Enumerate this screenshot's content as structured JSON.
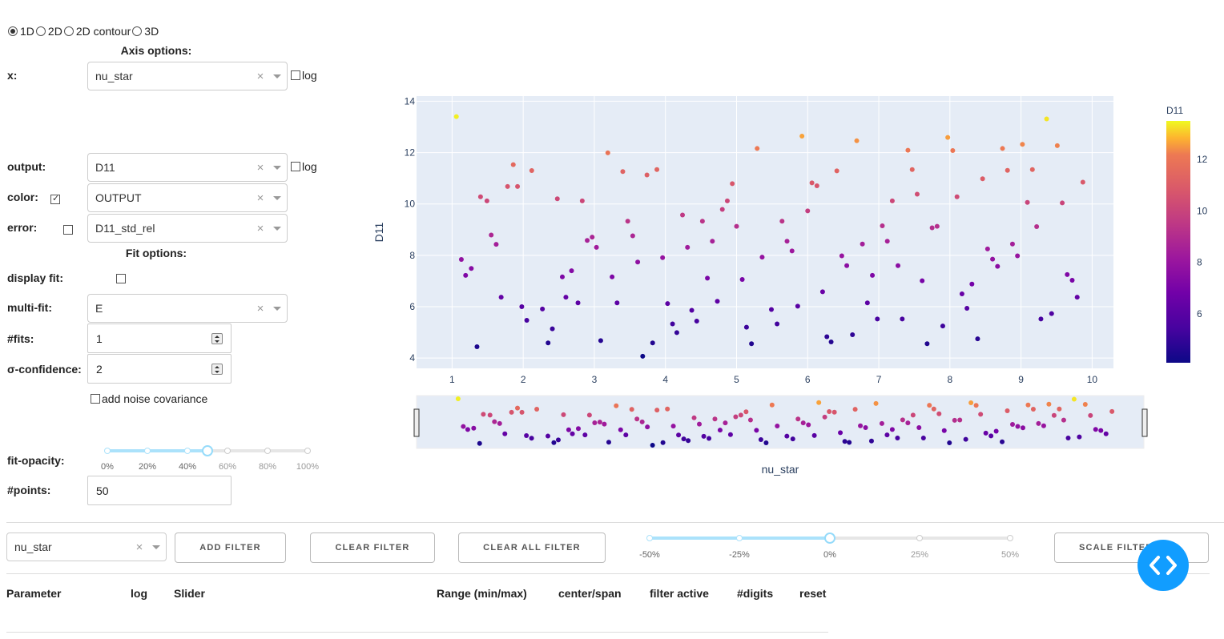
{
  "plot_mode": {
    "options": [
      "1D",
      "2D",
      "2D contour",
      "3D"
    ],
    "selected": "1D"
  },
  "axis_options": {
    "title": "Axis options:",
    "x": {
      "label": "x:",
      "value": "nu_star",
      "log_label": "log",
      "log_checked": false
    },
    "output": {
      "label": "output:",
      "value": "D11",
      "log_label": "log",
      "log_checked": false
    },
    "color": {
      "label": "color:",
      "checked": true,
      "value": "OUTPUT"
    },
    "error": {
      "label": "error:",
      "checked": false,
      "value": "D11_std_rel"
    }
  },
  "fit_options": {
    "title": "Fit options:",
    "display_fit": {
      "label": "display fit:",
      "checked": false
    },
    "multi_fit": {
      "label": "multi-fit:",
      "value": "E"
    },
    "n_fits": {
      "label": "#fits:",
      "value": "1"
    },
    "sigma_confidence": {
      "label": "σ-confidence:",
      "value": "2"
    },
    "noise_cov": {
      "label": "add noise covariance",
      "checked": false
    },
    "fit_opacity": {
      "label": "fit-opacity:",
      "value": 0.5,
      "marks": [
        "0%",
        "20%",
        "40%",
        "60%",
        "80%",
        "100%"
      ]
    },
    "n_points": {
      "label": "#points:",
      "value": "50"
    }
  },
  "filter_bar": {
    "parameter": "nu_star",
    "add_filter": "ADD FILTER",
    "clear_filter": "CLEAR FILTER",
    "clear_all_filter": "CLEAR ALL FILTER",
    "scale_filter": "SCALE FILTER",
    "scale_value": 0,
    "scale_marks": [
      "-50%",
      "-25%",
      "0%",
      "25%",
      "50%"
    ]
  },
  "filter_table": {
    "headers": [
      "Parameter",
      "log",
      "Slider",
      "Range (min/max)",
      "center/span",
      "filter active",
      "#digits",
      "reset"
    ]
  },
  "colors": {
    "plot_bg": "#e5ecf6",
    "accent": "#119dff",
    "slider_fill": "#abe2fb"
  },
  "chart_data": {
    "type": "scatter",
    "xlabel": "nu_star",
    "ylabel": "D11",
    "xlim": [
      0.5,
      10.3
    ],
    "ylim": [
      3.6,
      14.2
    ],
    "x_ticks": [
      "1",
      "2",
      "3",
      "4",
      "5",
      "6",
      "7",
      "8",
      "9",
      "10"
    ],
    "y_ticks": [
      "4",
      "6",
      "8",
      "10",
      "12",
      "14"
    ],
    "colorbar": {
      "title": "D11",
      "ticks": [
        "6",
        "8",
        "10",
        "12"
      ],
      "range": [
        4.1,
        13.5
      ],
      "colorscale": "plasma"
    },
    "grid": true,
    "range_slider": true,
    "points": [
      [
        1.06,
        13.4
      ],
      [
        1.13,
        7.84
      ],
      [
        1.19,
        7.22
      ],
      [
        1.27,
        7.49
      ],
      [
        1.35,
        4.44
      ],
      [
        1.4,
        10.28
      ],
      [
        1.49,
        10.12
      ],
      [
        1.55,
        8.79
      ],
      [
        1.62,
        8.43
      ],
      [
        1.69,
        6.37
      ],
      [
        1.78,
        10.68
      ],
      [
        1.86,
        11.53
      ],
      [
        1.92,
        10.68
      ],
      [
        1.98,
        6.0
      ],
      [
        2.05,
        5.47
      ],
      [
        2.12,
        11.3
      ],
      [
        2.27,
        5.91
      ],
      [
        2.35,
        4.59
      ],
      [
        2.41,
        5.14
      ],
      [
        2.48,
        10.2
      ],
      [
        2.55,
        7.16
      ],
      [
        2.6,
        6.37
      ],
      [
        2.68,
        7.4
      ],
      [
        2.77,
        6.15
      ],
      [
        2.83,
        10.12
      ],
      [
        2.9,
        8.58
      ],
      [
        2.97,
        8.71
      ],
      [
        3.03,
        8.31
      ],
      [
        3.09,
        4.68
      ],
      [
        3.19,
        11.99
      ],
      [
        3.25,
        7.16
      ],
      [
        3.32,
        6.15
      ],
      [
        3.4,
        11.26
      ],
      [
        3.47,
        9.33
      ],
      [
        3.54,
        8.76
      ],
      [
        3.61,
        7.74
      ],
      [
        3.68,
        4.07
      ],
      [
        3.74,
        11.13
      ],
      [
        3.82,
        4.59
      ],
      [
        3.88,
        11.34
      ],
      [
        3.96,
        7.91
      ],
      [
        4.03,
        6.12
      ],
      [
        4.1,
        5.33
      ],
      [
        4.16,
        4.99
      ],
      [
        4.24,
        9.57
      ],
      [
        4.31,
        8.31
      ],
      [
        4.37,
        5.86
      ],
      [
        4.44,
        5.44
      ],
      [
        4.52,
        9.33
      ],
      [
        4.59,
        7.11
      ],
      [
        4.66,
        8.55
      ],
      [
        4.73,
        6.21
      ],
      [
        4.8,
        9.79
      ],
      [
        4.87,
        10.12
      ],
      [
        4.94,
        10.79
      ],
      [
        5.0,
        9.13
      ],
      [
        5.08,
        7.06
      ],
      [
        5.14,
        5.2
      ],
      [
        5.21,
        4.56
      ],
      [
        5.29,
        12.16
      ],
      [
        5.36,
        7.93
      ],
      [
        5.49,
        5.89
      ],
      [
        5.57,
        5.33
      ],
      [
        5.64,
        9.33
      ],
      [
        5.71,
        8.55
      ],
      [
        5.78,
        8.17
      ],
      [
        5.86,
        6.02
      ],
      [
        5.92,
        12.64
      ],
      [
        6.0,
        9.73
      ],
      [
        6.06,
        10.82
      ],
      [
        6.13,
        10.71
      ],
      [
        6.21,
        6.58
      ],
      [
        6.27,
        4.83
      ],
      [
        6.33,
        4.63
      ],
      [
        6.41,
        11.29
      ],
      [
        6.48,
        7.98
      ],
      [
        6.55,
        7.6
      ],
      [
        6.63,
        4.91
      ],
      [
        6.69,
        12.46
      ],
      [
        6.77,
        8.44
      ],
      [
        6.84,
        6.15
      ],
      [
        6.91,
        7.22
      ],
      [
        6.98,
        5.52
      ],
      [
        7.05,
        9.15
      ],
      [
        7.12,
        8.55
      ],
      [
        7.19,
        10.12
      ],
      [
        7.27,
        7.6
      ],
      [
        7.33,
        5.52
      ],
      [
        7.41,
        12.09
      ],
      [
        7.47,
        11.34
      ],
      [
        7.54,
        10.38
      ],
      [
        7.61,
        7.01
      ],
      [
        7.68,
        4.56
      ],
      [
        7.75,
        9.07
      ],
      [
        7.82,
        9.13
      ],
      [
        7.9,
        5.25
      ],
      [
        7.97,
        12.59
      ],
      [
        8.04,
        12.08
      ],
      [
        8.1,
        10.28
      ],
      [
        8.17,
        6.5
      ],
      [
        8.24,
        5.94
      ],
      [
        8.31,
        6.88
      ],
      [
        8.39,
        4.75
      ],
      [
        8.46,
        10.98
      ],
      [
        8.53,
        8.25
      ],
      [
        8.6,
        7.85
      ],
      [
        8.67,
        7.57
      ],
      [
        8.74,
        12.16
      ],
      [
        8.81,
        11.31
      ],
      [
        8.88,
        8.44
      ],
      [
        8.95,
        7.98
      ],
      [
        9.02,
        12.32
      ],
      [
        9.09,
        10.06
      ],
      [
        9.16,
        11.34
      ],
      [
        9.22,
        9.12
      ],
      [
        9.28,
        5.52
      ],
      [
        9.36,
        13.31
      ],
      [
        9.43,
        5.73
      ],
      [
        9.51,
        12.27
      ],
      [
        9.58,
        10.04
      ],
      [
        9.65,
        7.25
      ],
      [
        9.72,
        7.03
      ],
      [
        9.79,
        6.37
      ],
      [
        9.87,
        10.85
      ]
    ]
  }
}
